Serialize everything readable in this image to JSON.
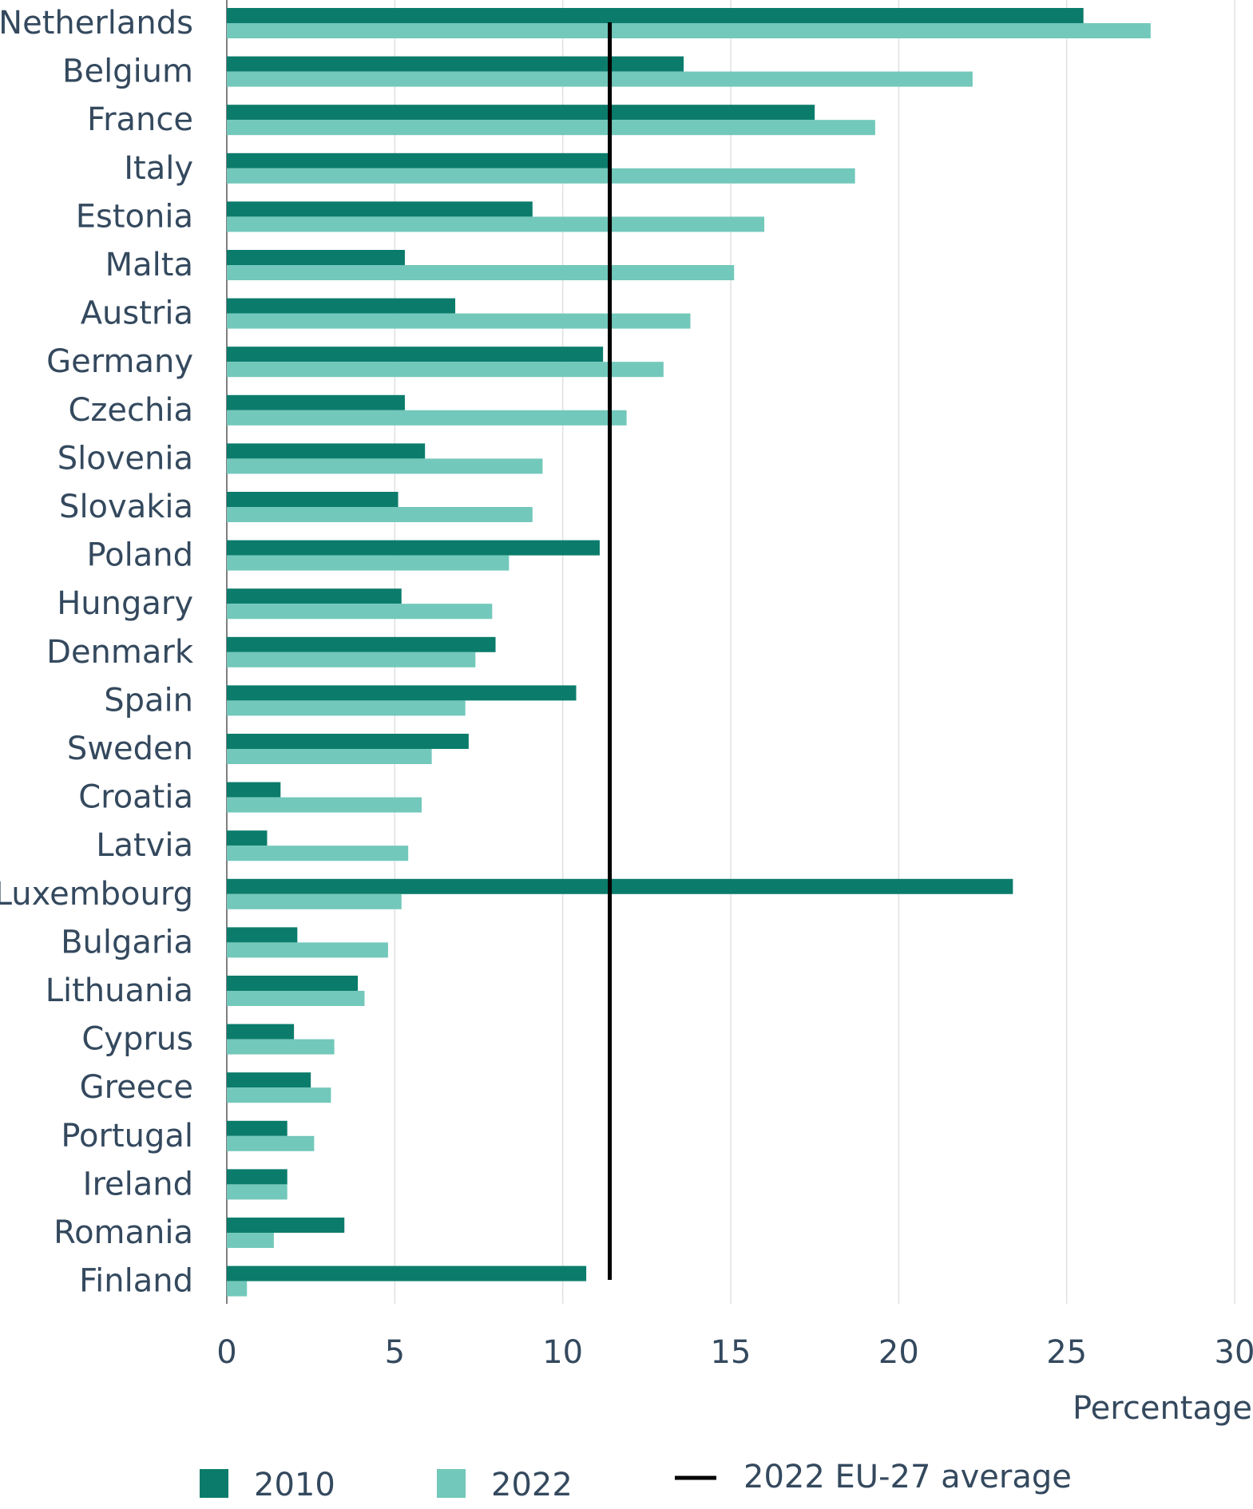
{
  "chart_data": {
    "type": "bar",
    "orientation": "horizontal",
    "title": "",
    "xlabel": "Percentage",
    "ylabel": "",
    "xlim": [
      0,
      30
    ],
    "x_ticks": [
      0,
      5,
      10,
      15,
      20,
      25,
      30
    ],
    "grid": "vertical",
    "legend_position": "bottom",
    "categories": [
      "Netherlands",
      "Belgium",
      "France",
      "Italy",
      "Estonia",
      "Malta",
      "Austria",
      "Germany",
      "Czechia",
      "Slovenia",
      "Slovakia",
      "Poland",
      "Hungary",
      "Denmark",
      "Spain",
      "Sweden",
      "Croatia",
      "Latvia",
      "Luxembourg",
      "Bulgaria",
      "Lithuania",
      "Cyprus",
      "Greece",
      "Portugal",
      "Ireland",
      "Romania",
      "Finland"
    ],
    "series": [
      {
        "name": "2010",
        "color": "#0b7c6b",
        "values": [
          25.5,
          13.6,
          17.5,
          11.4,
          9.1,
          5.3,
          6.8,
          11.2,
          5.3,
          5.9,
          5.1,
          11.1,
          5.2,
          8.0,
          10.4,
          7.2,
          1.6,
          1.2,
          23.4,
          2.1,
          3.9,
          2.0,
          2.5,
          1.8,
          1.8,
          3.5,
          10.7
        ]
      },
      {
        "name": "2022",
        "color": "#72c8bb",
        "values": [
          27.5,
          22.2,
          19.3,
          18.7,
          16.0,
          15.1,
          13.8,
          13.0,
          11.9,
          9.4,
          9.1,
          8.4,
          7.9,
          7.4,
          7.1,
          6.1,
          5.8,
          5.4,
          5.2,
          4.8,
          4.1,
          3.2,
          3.1,
          2.6,
          1.8,
          1.4,
          0.6
        ]
      }
    ],
    "reference_line": {
      "name": "2022 EU-27 average",
      "value": 11.4,
      "color": "#000000"
    }
  }
}
